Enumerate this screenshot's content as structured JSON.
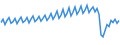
{
  "chart_data": {
    "type": "line",
    "categories": [
      null,
      null,
      null,
      null,
      null,
      null,
      null,
      null,
      null,
      null,
      null,
      null,
      null,
      null,
      null,
      null,
      null,
      null,
      null,
      null,
      null,
      null,
      null,
      null,
      null,
      null,
      null,
      null,
      null,
      null,
      null,
      null,
      null,
      null,
      null,
      null,
      null,
      null,
      null,
      null,
      null,
      null,
      null,
      null,
      null,
      null,
      null,
      null,
      null,
      null,
      null,
      null,
      null,
      null,
      null,
      null,
      null,
      null,
      null,
      null
    ],
    "values": [
      50,
      58,
      45,
      55,
      62,
      48,
      52,
      60,
      47,
      56,
      63,
      50,
      54,
      62,
      49,
      58,
      66,
      52,
      57,
      65,
      53,
      60,
      68,
      55,
      62,
      72,
      58,
      66,
      78,
      60,
      68,
      82,
      64,
      72,
      86,
      66,
      75,
      88,
      70,
      78,
      90,
      72,
      80,
      92,
      74,
      82,
      88,
      76,
      84,
      70,
      20,
      15,
      30,
      45,
      40,
      55,
      50,
      58,
      48,
      55
    ],
    "color": "#3b8ede",
    "ylim": [
      0,
      100
    ],
    "grid": false,
    "tick_labels": false
  }
}
